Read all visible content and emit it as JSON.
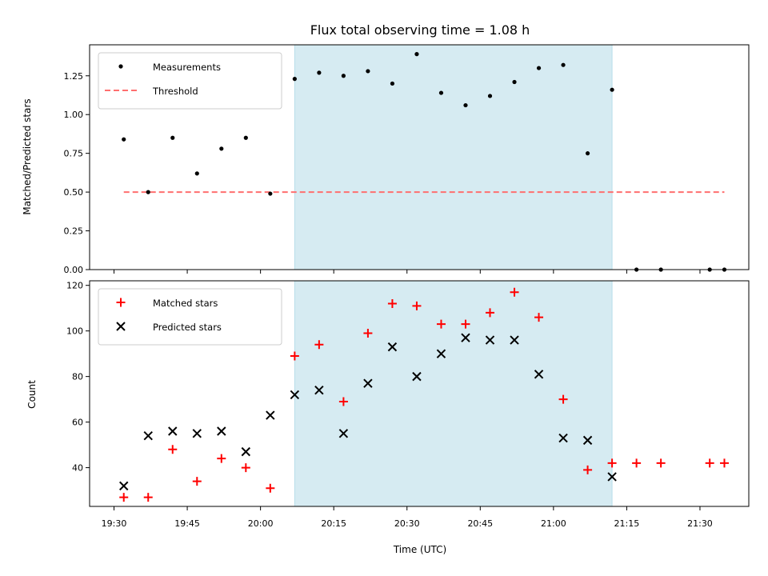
{
  "chart_data": [
    {
      "type": "scatter",
      "title": "Flux total observing time = 1.08 h",
      "xlabel": "",
      "ylabel": "Matched/Predicted stars",
      "ylim": [
        0,
        1.45
      ],
      "yticks": [
        "0.00",
        "0.25",
        "0.50",
        "0.75",
        "1.00",
        "1.25"
      ],
      "shaded_range": [
        "20:07",
        "21:12"
      ],
      "shade_color": "#add8e6",
      "threshold": {
        "name": "Threshold",
        "value": 0.5,
        "x": [
          "19:32",
          "21:35"
        ],
        "color": "#ff6f6f"
      },
      "series": [
        {
          "name": "Measurements",
          "color": "#000000",
          "x": [
            "19:32",
            "19:37",
            "19:42",
            "19:47",
            "19:52",
            "19:57",
            "20:02",
            "20:07",
            "20:12",
            "20:17",
            "20:22",
            "20:27",
            "20:32",
            "20:37",
            "20:42",
            "20:47",
            "20:52",
            "20:57",
            "21:02",
            "21:07",
            "21:12",
            "21:17",
            "21:22",
            "21:32",
            "21:35"
          ],
          "values": [
            0.84,
            0.5,
            0.85,
            0.62,
            0.78,
            0.85,
            0.49,
            1.23,
            1.27,
            1.25,
            1.28,
            1.2,
            1.39,
            1.14,
            1.06,
            1.12,
            1.21,
            1.3,
            1.32,
            0.75,
            1.16,
            0.0,
            0.0,
            0.0,
            0.0
          ]
        }
      ],
      "legend_position": "upper-left"
    },
    {
      "type": "scatter",
      "title": "",
      "xlabel": "Time (UTC)",
      "ylabel": "Count",
      "ylim": [
        23,
        122
      ],
      "yticks": [
        "40",
        "60",
        "80",
        "100",
        "120"
      ],
      "xticks": [
        "19:30",
        "19:45",
        "20:00",
        "20:15",
        "20:30",
        "20:45",
        "21:00",
        "21:15",
        "21:30"
      ],
      "shaded_range": [
        "20:07",
        "21:12"
      ],
      "shade_color": "#add8e6",
      "series": [
        {
          "name": "Matched stars",
          "marker": "plus",
          "color": "#ff0000",
          "x": [
            "19:32",
            "19:37",
            "19:42",
            "19:47",
            "19:52",
            "19:57",
            "20:02",
            "20:07",
            "20:12",
            "20:17",
            "20:22",
            "20:27",
            "20:32",
            "20:37",
            "20:42",
            "20:47",
            "20:52",
            "20:57",
            "21:02",
            "21:07",
            "21:12",
            "21:17",
            "21:22",
            "21:32",
            "21:35"
          ],
          "values": [
            27,
            27,
            48,
            34,
            44,
            40,
            31,
            89,
            94,
            69,
            99,
            112,
            111,
            103,
            103,
            108,
            117,
            106,
            70,
            39,
            42,
            42,
            42,
            42,
            42
          ]
        },
        {
          "name": "Predicted stars",
          "marker": "x",
          "color": "#000000",
          "x": [
            "19:32",
            "19:37",
            "19:42",
            "19:47",
            "19:52",
            "19:57",
            "20:02",
            "20:07",
            "20:12",
            "20:17",
            "20:22",
            "20:27",
            "20:32",
            "20:37",
            "20:42",
            "20:47",
            "20:52",
            "20:57",
            "21:02",
            "21:07",
            "21:12"
          ],
          "values": [
            32,
            54,
            56,
            55,
            56,
            47,
            63,
            72,
            74,
            55,
            77,
            93,
            80,
            90,
            97,
            96,
            96,
            81,
            53,
            52,
            36
          ]
        }
      ],
      "legend_position": "upper-left"
    }
  ]
}
